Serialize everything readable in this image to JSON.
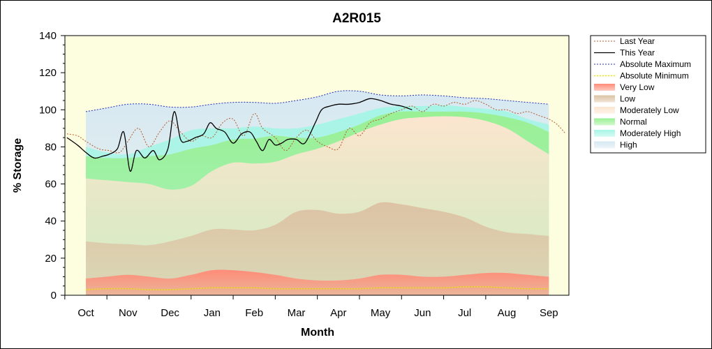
{
  "chart_data": {
    "type": "area",
    "title": "A2R015",
    "xlabel": "Month",
    "ylabel": "% Storage",
    "ylim": [
      0,
      140
    ],
    "yticks": [
      "0",
      "20",
      "40",
      "60",
      "80",
      "100",
      "120",
      "140"
    ],
    "categories": [
      "Oct",
      "Nov",
      "Dec",
      "Jan",
      "Feb",
      "Mar",
      "Apr",
      "May",
      "Jun",
      "Jul",
      "Aug",
      "Sep"
    ],
    "legend_position": "right",
    "grid": false,
    "band_x": [
      0,
      0.5,
      1,
      1.5,
      2,
      2.5,
      3,
      3.5,
      4,
      4.5,
      5,
      5.5,
      6,
      6.5,
      7,
      7.5,
      8,
      8.5,
      9,
      9.5,
      10,
      10.5,
      11
    ],
    "bands": [
      {
        "name": "Very Low",
        "color": "#ff8c78",
        "upper": [
          9,
          10,
          11,
          10,
          9,
          11,
          13.5,
          13.5,
          12.5,
          11,
          9,
          8,
          8,
          9,
          11,
          11,
          10,
          10,
          11,
          12,
          12,
          11,
          10
        ]
      },
      {
        "name": "Low",
        "color": "#dcc3a4",
        "upper": [
          29,
          28,
          27.5,
          27,
          29,
          32,
          35.5,
          35.5,
          35,
          38,
          45,
          46,
          44,
          45,
          50,
          49,
          47,
          45,
          42,
          37,
          34,
          33,
          32
        ]
      },
      {
        "name": "Moderately Low",
        "color": "#fce5d0",
        "upper": [
          63,
          62,
          61,
          60,
          57,
          59,
          67,
          71.5,
          71,
          72,
          76,
          79,
          83,
          88,
          92,
          95,
          96,
          96.5,
          96,
          94,
          90,
          83,
          76
        ]
      },
      {
        "name": "Normal",
        "color": "#9af094",
        "upper": [
          75,
          74,
          74,
          75,
          76,
          79,
          81,
          84,
          84.5,
          86,
          85,
          85,
          88,
          92,
          97,
          99,
          99,
          99,
          99,
          98,
          96,
          93,
          88
        ]
      },
      {
        "name": "Moderately High",
        "color": "#a6f5e6",
        "upper": [
          80,
          77,
          76,
          80,
          84,
          89,
          90,
          90,
          91,
          90,
          90,
          92,
          95,
          98,
          101,
          102,
          102,
          102.5,
          101.5,
          100.5,
          99,
          95,
          92
        ]
      },
      {
        "name": "High",
        "color": "#d6e8f2",
        "upper": [
          99,
          101,
          103,
          103,
          101.5,
          101.5,
          103,
          104,
          104,
          103.5,
          105,
          107,
          110,
          110,
          108,
          107.5,
          108,
          107.5,
          106.5,
          106,
          105,
          104,
          103
        ]
      }
    ],
    "series": [
      {
        "name": "Last Year",
        "color": "#b45a28",
        "dash": "dotted",
        "x": [
          -0.45,
          -0.2,
          0,
          0.3,
          0.55,
          0.8,
          1,
          1.25,
          1.5,
          1.75,
          2,
          2.25,
          2.5,
          2.75,
          3,
          3.25,
          3.5,
          3.75,
          4,
          4.2,
          4.5,
          4.75,
          5,
          5.25,
          5.5,
          5.75,
          6,
          6.25,
          6.5,
          6.75,
          7,
          7.25,
          7.5,
          7.75,
          8,
          8.25,
          8.5,
          8.75,
          9,
          9.25,
          9.5,
          9.75,
          10,
          10.25,
          10.5,
          10.75,
          11,
          11.2,
          11.4
        ],
        "y": [
          87,
          86,
          83,
          79,
          78,
          77,
          83,
          90,
          80,
          88,
          94,
          88,
          83,
          86,
          85,
          93,
          95,
          86,
          98,
          90,
          85,
          78,
          85,
          89,
          83,
          80,
          79,
          90,
          86,
          93,
          95,
          98,
          100,
          102,
          99,
          103,
          102,
          104,
          103,
          105,
          103,
          100,
          100,
          98,
          99,
          97,
          95,
          92,
          87
        ]
      },
      {
        "name": "This Year",
        "color": "#000000",
        "dash": "solid",
        "x": [
          -0.45,
          -0.2,
          0,
          0.2,
          0.4,
          0.55,
          0.75,
          0.9,
          1.05,
          1.2,
          1.4,
          1.6,
          1.75,
          1.95,
          2.1,
          2.25,
          2.4,
          2.6,
          2.8,
          2.95,
          3.1,
          3.3,
          3.5,
          3.7,
          3.9,
          4.05,
          4.2,
          4.35,
          4.5,
          4.65,
          4.8,
          5,
          5.2,
          5.45,
          5.6,
          5.8,
          6,
          6.25,
          6.5,
          6.75,
          7,
          7.25,
          7.5,
          7.75
        ],
        "y": [
          85,
          81,
          77,
          74,
          75,
          76,
          79,
          88,
          67,
          78,
          74,
          78,
          73,
          79,
          99,
          84,
          83,
          85,
          87,
          93,
          90,
          88,
          82,
          87,
          88,
          83,
          78,
          84,
          81,
          82,
          84,
          84,
          82,
          93,
          100,
          102,
          103,
          103,
          104,
          106,
          105,
          103,
          102,
          100
        ]
      },
      {
        "name": "Absolute Maximum",
        "color": "#1e2dbe",
        "dash": "dotted",
        "x": [
          0,
          0.5,
          1,
          1.5,
          2,
          2.5,
          3,
          3.5,
          4,
          4.5,
          5,
          5.5,
          6,
          6.5,
          7,
          7.5,
          8,
          8.5,
          9,
          9.5,
          10,
          10.5,
          11
        ],
        "y": [
          99,
          101,
          103,
          103,
          101.5,
          101.5,
          103,
          104,
          104,
          103.5,
          105,
          107,
          110,
          110,
          108,
          107.5,
          108,
          107.5,
          106.5,
          106,
          105,
          104,
          103
        ]
      },
      {
        "name": "Absolute Minimum",
        "color": "#e6e600",
        "dash": "dotted",
        "x": [
          0,
          0.5,
          1,
          1.5,
          2,
          2.5,
          3,
          3.5,
          4,
          4.5,
          5,
          5.5,
          6,
          6.5,
          7,
          7.5,
          8,
          8.5,
          9,
          9.5,
          10,
          10.5,
          11
        ],
        "y": [
          3,
          3.5,
          3.5,
          3,
          3,
          3.5,
          4,
          4,
          4,
          3.5,
          3.5,
          3.5,
          3.5,
          3.5,
          4,
          4,
          4,
          4,
          4.5,
          4.5,
          4,
          3.5,
          3.5
        ]
      }
    ]
  }
}
